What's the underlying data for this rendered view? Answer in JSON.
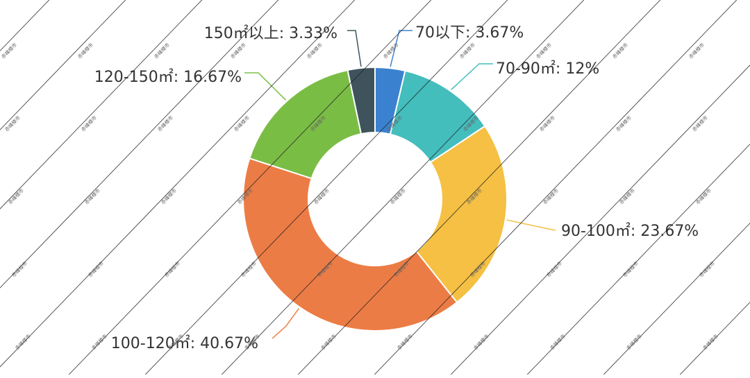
{
  "chart_data": {
    "type": "pie",
    "variant": "donut",
    "title": "",
    "legend": "none",
    "start": "top",
    "direction": "clockwise",
    "slices": [
      {
        "label": "70以下",
        "value": 3.67,
        "display": "70以下: 3.67%",
        "color": "#3a82d0"
      },
      {
        "label": "70-90㎡",
        "value": 12,
        "display": "70-90㎡: 12%",
        "color": "#44bdbd"
      },
      {
        "label": "90-100㎡",
        "value": 23.67,
        "display": "90-100㎡: 23.67%",
        "color": "#f5c043"
      },
      {
        "label": "100-120㎡",
        "value": 40.67,
        "display": "100-120㎡: 40.67%",
        "color": "#ec7c45"
      },
      {
        "label": "120-150㎡",
        "value": 16.67,
        "display": "120-150㎡: 16.67%",
        "color": "#7abd45"
      },
      {
        "label": "150㎡以上",
        "value": 3.33,
        "display": "150㎡以上: 3.33%",
        "color": "#3f535d"
      }
    ]
  },
  "watermark": {
    "text": "赤峰楼市",
    "color": "#222222"
  }
}
